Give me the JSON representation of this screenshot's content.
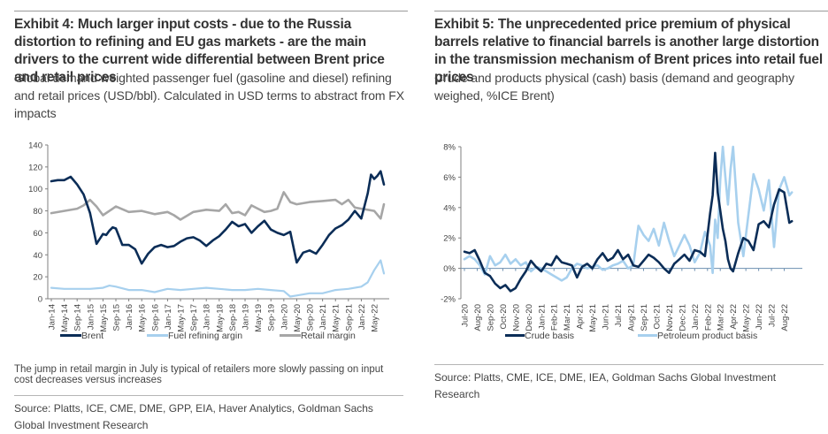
{
  "exhibit4": {
    "title": "Exhibit 4: Much larger input costs - due to the Russia distortion to refining and EU gas markets - are the main drivers to the current wide differential between Brent price and retail prices",
    "subtitle": "Global demand weighted passenger fuel (gasoline and diesel) refining and retail prices (USD/bbl). Calculated in USD terms to abstract from FX impacts",
    "note": "The jump in retail margin in July is typical of retailers more slowly passing on input cost decreases versus increases",
    "source": "Source: Platts, ICE, CME, DME, GPP, EIA, Haver Analytics, Goldman Sachs Global Investment Research"
  },
  "exhibit5": {
    "title": "Exhibit 5: The unprecedented price premium of physical barrels relative to financial barrels is another large distortion in the transmission mechanism of Brent prices into retail fuel prices",
    "subtitle": "Crude and products physical (cash) basis (demand and geography weighed, %ICE Brent)",
    "source": "Source: Platts, CME, ICE, DME, IEA, Goldman Sachs Global Investment Research"
  },
  "chart_data": [
    {
      "type": "line",
      "title": "Global demand weighted passenger fuel refining and retail prices (USD/bbl)",
      "xlabel": "",
      "ylabel": "USD/bbl",
      "ylim": [
        0,
        140
      ],
      "yticks": [
        "0",
        "20",
        "40",
        "60",
        "80",
        "100",
        "120",
        "140"
      ],
      "ytick_values": [
        0,
        20,
        40,
        60,
        80,
        100,
        120,
        140
      ],
      "xticks": [
        "Jan-14",
        "May-14",
        "Sep-14",
        "Jan-15",
        "May-15",
        "Sep-15",
        "Jan-16",
        "May-16",
        "Sep-16",
        "Jan-17",
        "May-17",
        "Sep-17",
        "Jan-18",
        "May-18",
        "Sep-18",
        "Jan-19",
        "May-19",
        "Sep-19",
        "Jan-20",
        "May-20",
        "Sep-20",
        "Jan-21",
        "May-21",
        "Sep-21",
        "Jan-22",
        "May-22"
      ],
      "x_months_range": [
        0,
        103
      ],
      "legend_position": "bottom",
      "grid": false,
      "series": [
        {
          "name": "Brent",
          "color": "#0b2d57",
          "x_month": [
            0,
            2,
            4,
            6,
            8,
            10,
            12,
            14,
            16,
            17,
            18,
            19,
            20,
            22,
            24,
            26,
            28,
            30,
            32,
            34,
            36,
            38,
            40,
            42,
            44,
            46,
            48,
            50,
            52,
            54,
            56,
            58,
            60,
            62,
            64,
            66,
            68,
            70,
            72,
            74,
            76,
            78,
            80,
            82,
            84,
            86,
            88,
            90,
            92,
            94,
            96,
            98,
            99,
            100,
            101,
            102,
            103
          ],
          "values": [
            107,
            108,
            108,
            111,
            104,
            95,
            78,
            50,
            59,
            58,
            62,
            65,
            64,
            49,
            49,
            45,
            32,
            41,
            47,
            49,
            47,
            48,
            52,
            55,
            56,
            53,
            48,
            53,
            57,
            63,
            70,
            66,
            68,
            60,
            66,
            71,
            63,
            60,
            58,
            61,
            33,
            42,
            44,
            41,
            49,
            58,
            64,
            67,
            72,
            80,
            73,
            96,
            113,
            109,
            112,
            116,
            104
          ]
        },
        {
          "name": "Fuel refining argin",
          "color": "#a7d0ee",
          "x_month": [
            0,
            4,
            8,
            12,
            16,
            18,
            20,
            24,
            28,
            32,
            36,
            40,
            44,
            48,
            52,
            56,
            60,
            64,
            68,
            72,
            74,
            76,
            80,
            84,
            88,
            92,
            96,
            98,
            100,
            102,
            103
          ],
          "values": [
            10,
            9,
            9,
            9,
            10,
            12,
            11,
            8,
            8,
            6,
            9,
            8,
            9,
            10,
            9,
            8,
            8,
            9,
            8,
            7,
            2,
            3,
            5,
            5,
            8,
            9,
            11,
            15,
            26,
            35,
            23
          ]
        },
        {
          "name": "Retail margin",
          "color": "#a6a6a6",
          "x_month": [
            0,
            4,
            8,
            10,
            12,
            14,
            16,
            18,
            20,
            24,
            28,
            32,
            36,
            38,
            40,
            44,
            48,
            52,
            54,
            56,
            58,
            60,
            62,
            64,
            66,
            68,
            70,
            72,
            74,
            76,
            80,
            84,
            88,
            90,
            92,
            94,
            96,
            98,
            100,
            102,
            103
          ],
          "values": [
            78,
            80,
            82,
            85,
            90,
            84,
            76,
            80,
            84,
            79,
            80,
            77,
            79,
            76,
            72,
            79,
            81,
            80,
            86,
            78,
            79,
            76,
            85,
            82,
            79,
            80,
            82,
            97,
            88,
            86,
            88,
            89,
            90,
            86,
            90,
            83,
            82,
            81,
            80,
            73,
            86
          ]
        }
      ]
    },
    {
      "type": "line",
      "title": "Crude and products physical (cash) basis (demand and geography weighed, %ICE Brent)",
      "xlabel": "",
      "ylabel": "%ICE Brent",
      "ylim": [
        -2,
        8
      ],
      "yticks": [
        "-2%",
        "0%",
        "2%",
        "4%",
        "6%",
        "8%"
      ],
      "ytick_values": [
        -2,
        0,
        2,
        4,
        6,
        8
      ],
      "xticks": [
        "Jul-20",
        "Aug-20",
        "Sep-20",
        "Oct-20",
        "Nov-20",
        "Dec-20",
        "Jan-21",
        "Feb-21",
        "Mar-21",
        "Apr-21",
        "May-21",
        "Jun-21",
        "Jul-21",
        "Aug-21",
        "Sep-21",
        "Oct-21",
        "Nov-21",
        "Dec-21",
        "Jan-22",
        "Feb-22",
        "Mar-22",
        "Apr-22",
        "May-22",
        "Jun-22",
        "Jul-22",
        "Aug-22"
      ],
      "x_months_range": [
        0,
        26
      ],
      "legend_position": "bottom",
      "grid": false,
      "series": [
        {
          "name": "Crude basis",
          "color": "#0b2d57",
          "x_month": [
            0,
            0.4,
            0.8,
            1.2,
            1.6,
            2.0,
            2.4,
            2.8,
            3.2,
            3.6,
            4.0,
            4.4,
            4.8,
            5.2,
            5.6,
            6.0,
            6.4,
            6.8,
            7.2,
            7.6,
            8.0,
            8.4,
            8.8,
            9.2,
            9.6,
            10.0,
            10.4,
            10.8,
            11.2,
            11.6,
            12.0,
            12.4,
            12.8,
            13.2,
            13.6,
            14.0,
            14.4,
            14.8,
            15.2,
            15.6,
            16.0,
            16.4,
            16.8,
            17.2,
            17.6,
            18.0,
            18.4,
            18.8,
            19.2,
            19.4,
            19.6,
            19.8,
            20.0,
            20.2,
            20.4,
            20.6,
            20.8,
            21.0,
            21.4,
            21.8,
            22.2,
            22.6,
            23.0,
            23.4,
            23.8,
            24.2,
            24.6,
            25.0,
            25.4,
            25.6
          ],
          "values": [
            1.1,
            1.0,
            1.2,
            0.5,
            -0.3,
            -0.5,
            -1.0,
            -1.3,
            -1.1,
            -1.5,
            -1.3,
            -0.7,
            -0.2,
            0.5,
            0.1,
            -0.2,
            0.3,
            0.2,
            0.8,
            0.4,
            0.3,
            0.2,
            -0.6,
            0.1,
            0.3,
            0.0,
            0.6,
            1.0,
            0.5,
            0.7,
            1.2,
            0.6,
            0.9,
            0.2,
            0.1,
            0.5,
            0.9,
            0.7,
            0.4,
            0.0,
            -0.3,
            0.3,
            0.6,
            0.9,
            0.5,
            1.2,
            1.1,
            0.8,
            3.6,
            4.8,
            7.6,
            5.0,
            3.8,
            2.6,
            1.8,
            0.6,
            0.0,
            -0.2,
            1.0,
            2.0,
            1.8,
            1.2,
            2.9,
            3.1,
            2.7,
            4.2,
            5.2,
            5.0,
            3.0,
            3.1
          ]
        },
        {
          "name": "Petroleum product basis",
          "color": "#a7d0ee",
          "x_month": [
            0,
            0.4,
            0.8,
            1.2,
            1.6,
            2.0,
            2.4,
            2.8,
            3.2,
            3.6,
            4.0,
            4.4,
            4.8,
            5.2,
            5.6,
            6.0,
            6.4,
            6.8,
            7.2,
            7.6,
            8.0,
            8.4,
            8.8,
            9.2,
            9.6,
            10.0,
            10.4,
            10.8,
            11.2,
            11.6,
            12.0,
            12.4,
            12.8,
            13.2,
            13.6,
            14.0,
            14.4,
            14.8,
            15.2,
            15.6,
            16.0,
            16.4,
            16.8,
            17.2,
            17.6,
            18.0,
            18.4,
            18.8,
            19.2,
            19.4,
            19.6,
            19.8,
            20.0,
            20.2,
            20.4,
            20.6,
            20.8,
            21.0,
            21.4,
            21.8,
            22.2,
            22.6,
            23.0,
            23.4,
            23.8,
            24.2,
            24.6,
            25.0,
            25.4,
            25.6
          ],
          "values": [
            0.6,
            0.8,
            0.6,
            0.2,
            -0.4,
            0.8,
            0.2,
            0.4,
            0.9,
            0.3,
            0.6,
            0.2,
            0.4,
            -0.2,
            0.1,
            0.0,
            -0.2,
            -0.4,
            -0.6,
            -0.8,
            -0.6,
            0.0,
            0.3,
            0.2,
            0.0,
            0.1,
            0.2,
            -0.1,
            0.0,
            0.2,
            0.3,
            0.5,
            0.0,
            0.2,
            2.8,
            2.2,
            1.8,
            2.6,
            1.5,
            3.0,
            1.8,
            0.8,
            1.5,
            2.2,
            1.5,
            0.4,
            1.0,
            2.4,
            1.5,
            -0.3,
            3.2,
            2.0,
            5.8,
            8.0,
            6.0,
            4.2,
            6.5,
            8.0,
            3.0,
            0.8,
            3.5,
            6.2,
            5.2,
            3.8,
            5.8,
            1.4,
            5.2,
            6.0,
            4.8,
            5.0
          ]
        }
      ]
    }
  ]
}
